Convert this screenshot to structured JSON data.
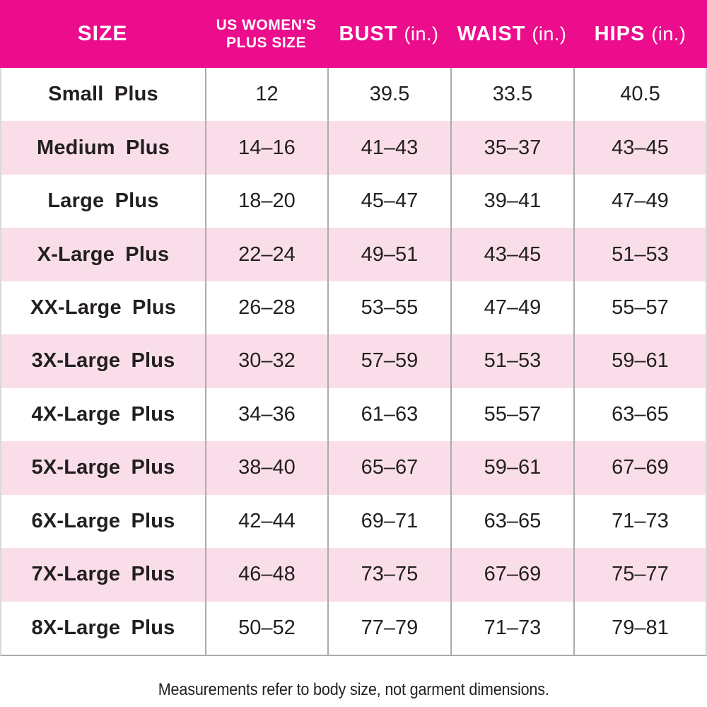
{
  "chart_data": {
    "type": "table",
    "title": "",
    "columns": [
      "SIZE",
      "US WOMEN'S PLUS SIZE",
      "BUST (in.)",
      "WAIST (in.)",
      "HIPS (in.)"
    ],
    "header": {
      "size": "SIZE",
      "us_plus_lines": [
        "US WOMEN'S",
        "PLUS SIZE"
      ],
      "bust_name": "BUST",
      "bust_unit": "(in.)",
      "waist_name": "WAIST",
      "waist_unit": "(in.)",
      "hips_name": "HIPS",
      "hips_unit": "(in.)"
    },
    "rows": [
      {
        "size": "Small Plus",
        "us_plus_size": "12",
        "bust": "39.5",
        "waist": "33.5",
        "hips": "40.5"
      },
      {
        "size": "Medium Plus",
        "us_plus_size": "14–16",
        "bust": "41–43",
        "waist": "35–37",
        "hips": "43–45"
      },
      {
        "size": "Large Plus",
        "us_plus_size": "18–20",
        "bust": "45–47",
        "waist": "39–41",
        "hips": "47–49"
      },
      {
        "size": "X-Large Plus",
        "us_plus_size": "22–24",
        "bust": "49–51",
        "waist": "43–45",
        "hips": "51–53"
      },
      {
        "size": "XX-Large Plus",
        "us_plus_size": "26–28",
        "bust": "53–55",
        "waist": "47–49",
        "hips": "55–57"
      },
      {
        "size": "3X-Large Plus",
        "us_plus_size": "30–32",
        "bust": "57–59",
        "waist": "51–53",
        "hips": "59–61"
      },
      {
        "size": "4X-Large Plus",
        "us_plus_size": "34–36",
        "bust": "61–63",
        "waist": "55–57",
        "hips": "63–65"
      },
      {
        "size": "5X-Large Plus",
        "us_plus_size": "38–40",
        "bust": "65–67",
        "waist": "59–61",
        "hips": "67–69"
      },
      {
        "size": "6X-Large Plus",
        "us_plus_size": "42–44",
        "bust": "69–71",
        "waist": "63–65",
        "hips": "71–73"
      },
      {
        "size": "7X-Large Plus",
        "us_plus_size": "46–48",
        "bust": "73–75",
        "waist": "67–69",
        "hips": "75–77"
      },
      {
        "size": "8X-Large Plus",
        "us_plus_size": "50–52",
        "bust": "77–79",
        "waist": "71–73",
        "hips": "79–81"
      }
    ],
    "footnote": "Measurements refer to body size, not garment dimensions.",
    "colors": {
      "header_bg": "#EB0D8C",
      "header_text": "#FFFFFF",
      "alt_row_bg": "#F9DEEA",
      "divider": "#ABABAB",
      "body_text": "#231F20"
    },
    "layout": {
      "legend": "none",
      "grid": "vertical column dividers only",
      "alternating_rows": true,
      "first_row_background": "white"
    }
  }
}
